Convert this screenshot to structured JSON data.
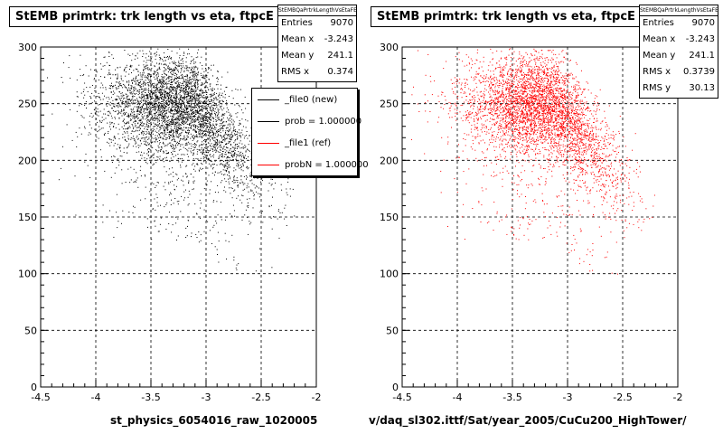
{
  "panels": [
    {
      "title": "StEMB primtrk: trk length vs eta, ftpcE",
      "stats_header": "StEMBQaPrtrkLengthVsEtaFE",
      "stats": [
        {
          "label": "Entries",
          "value": "9070"
        },
        {
          "label": "Mean x",
          "value": "-3.243"
        },
        {
          "label": "Mean y",
          "value": "241.1"
        },
        {
          "label": "RMS x",
          "value": "0.374"
        }
      ],
      "legend": [
        {
          "label": "_file0 (new)",
          "color": "#000000"
        },
        {
          "label": "prob = 1.000000",
          "color": "#000000"
        },
        {
          "label": "_file1 (ref)",
          "color": "#ff0000"
        },
        {
          "label": "probN = 1.000000",
          "color": "#ff0000"
        }
      ],
      "xcaption": "st_physics_6054016_raw_1020005",
      "marker_color": "#000000"
    },
    {
      "title": "StEMB primtrk: trk length vs eta, ftpcE",
      "stats_header": "StEMBQaPrtrkLengthVsEtaFE",
      "stats": [
        {
          "label": "Entries",
          "value": "9070"
        },
        {
          "label": "Mean x",
          "value": "-3.243"
        },
        {
          "label": "Mean y",
          "value": "241.1"
        },
        {
          "label": "RMS x",
          "value": "0.3739"
        },
        {
          "label": "RMS y",
          "value": "30.13"
        }
      ],
      "xcaption": "v/daq_sl302.ittf/Sat/year_2005/CuCu200_HighTower/",
      "marker_color": "#ff0000"
    }
  ],
  "chart_data": [
    {
      "type": "scatter",
      "title": "StEMB primtrk: trk length vs eta, ftpcE",
      "xlabel": "",
      "ylabel": "",
      "xlim": [
        -4.5,
        -2
      ],
      "ylim": [
        0,
        300
      ],
      "xticks": [
        "-4.5",
        "-4",
        "-3.5",
        "-3",
        "-2.5",
        "-2"
      ],
      "yticks": [
        "0",
        "50",
        "100",
        "150",
        "200",
        "250",
        "300"
      ],
      "grid": true,
      "legend_position": "top-right",
      "series": [
        {
          "name": "_file0 (new)",
          "color": "#000000",
          "entries": 9070,
          "mean_x": -3.243,
          "mean_y": 241.1,
          "rms_x": 0.374
        }
      ]
    },
    {
      "type": "scatter",
      "title": "StEMB primtrk: trk length vs eta, ftpcE",
      "xlabel": "",
      "ylabel": "",
      "xlim": [
        -4.5,
        -2
      ],
      "ylim": [
        0,
        300
      ],
      "xticks": [
        "-4.5",
        "-4",
        "-3.5",
        "-3",
        "-2.5",
        "-2"
      ],
      "yticks": [
        "0",
        "50",
        "100",
        "150",
        "200",
        "250",
        "300"
      ],
      "grid": true,
      "series": [
        {
          "name": "_file1 (ref)",
          "color": "#ff0000",
          "entries": 9070,
          "mean_x": -3.243,
          "mean_y": 241.1,
          "rms_x": 0.3739,
          "rms_y": 30.13
        }
      ]
    }
  ]
}
